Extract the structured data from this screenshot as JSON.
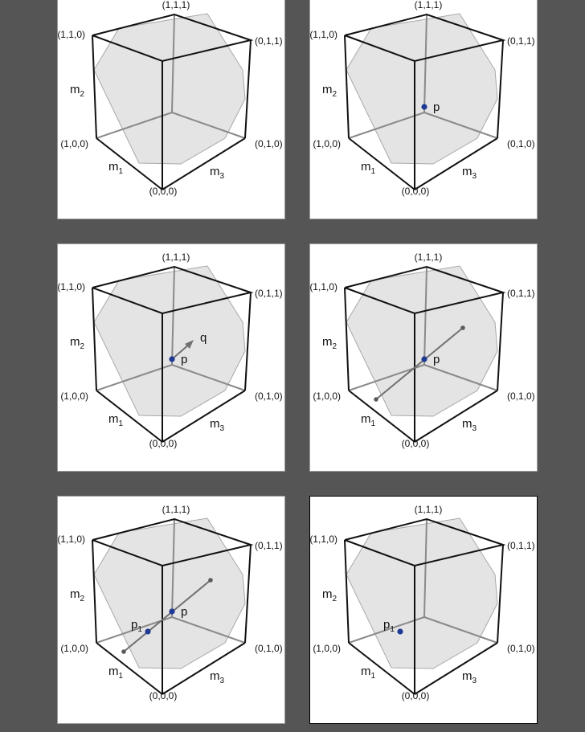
{
  "corners": {
    "top": "(1,1,1)",
    "left_top": "(1,1,0)",
    "right_top": "(0,1,1)",
    "left_bottom": "(1,0,0)",
    "right_bottom": "(0,1,0)",
    "bottom": "(0,0,0)"
  },
  "axes": {
    "m1": {
      "letter": "m",
      "sub": "1"
    },
    "m2": {
      "letter": "m",
      "sub": "2"
    },
    "m3": {
      "letter": "m",
      "sub": "3"
    }
  },
  "labels": {
    "p": "p",
    "q": "q",
    "p1": {
      "letter": "p",
      "sub": "1"
    }
  },
  "colors": {
    "background": "#555555",
    "panel": "#ffffff",
    "plane_fill": "#e4e4e4",
    "plane_stroke": "#a8a8a8",
    "cube_edges": "#111111",
    "hidden_edges": "#8a8a8a",
    "point": "#1f3a93",
    "line": "#707070",
    "endpoint": "#5a5a5a"
  },
  "panels": [
    {
      "id": "panel-1",
      "show_p": false,
      "show_q_arrow": false,
      "show_line": false,
      "show_p1": false,
      "selected": false
    },
    {
      "id": "panel-2",
      "show_p": true,
      "show_q_arrow": false,
      "show_line": false,
      "show_p1": false,
      "selected": false
    },
    {
      "id": "panel-3",
      "show_p": true,
      "show_q_arrow": true,
      "show_line": false,
      "show_p1": false,
      "selected": false
    },
    {
      "id": "panel-4",
      "show_p": true,
      "show_q_arrow": false,
      "show_line": true,
      "show_p1": false,
      "selected": false
    },
    {
      "id": "panel-5",
      "show_p": true,
      "show_q_arrow": false,
      "show_line": true,
      "show_p1": true,
      "selected": false
    },
    {
      "id": "panel-6",
      "show_p": false,
      "show_q_arrow": false,
      "show_line": false,
      "show_p1": true,
      "selected": true
    }
  ]
}
